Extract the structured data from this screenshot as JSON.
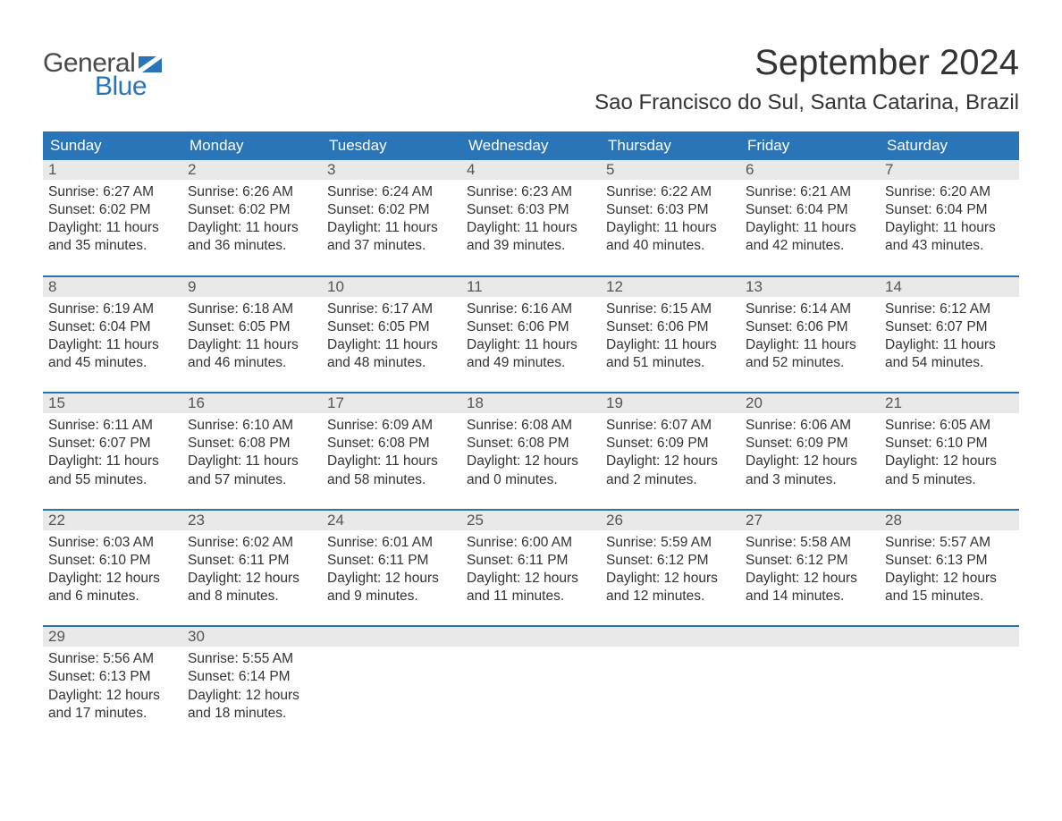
{
  "logo": {
    "line1": "General",
    "line2": "Blue",
    "flag_color": "#2a74b8",
    "text1_color": "#4a4a4a",
    "text2_color": "#2a74b8"
  },
  "title": "September 2024",
  "location": "Sao Francisco do Sul, Santa Catarina, Brazil",
  "colors": {
    "header_bg": "#2a74b8",
    "header_text": "#ffffff",
    "daynum_bg": "#e9e9e9",
    "daynum_text": "#555555",
    "body_text": "#333333",
    "week_divider": "#2a74b8",
    "page_bg": "#ffffff"
  },
  "typography": {
    "title_fontsize": 40,
    "location_fontsize": 24,
    "dayheader_fontsize": 17,
    "daynum_fontsize": 17,
    "body_fontsize": 15.5,
    "font_family": "Arial"
  },
  "layout": {
    "columns": 7,
    "rows": 5,
    "week_divider_width": 2
  },
  "day_headers": [
    "Sunday",
    "Monday",
    "Tuesday",
    "Wednesday",
    "Thursday",
    "Friday",
    "Saturday"
  ],
  "weeks": [
    [
      {
        "n": "1",
        "sunrise": "Sunrise: 6:27 AM",
        "sunset": "Sunset: 6:02 PM",
        "dl1": "Daylight: 11 hours",
        "dl2": "and 35 minutes."
      },
      {
        "n": "2",
        "sunrise": "Sunrise: 6:26 AM",
        "sunset": "Sunset: 6:02 PM",
        "dl1": "Daylight: 11 hours",
        "dl2": "and 36 minutes."
      },
      {
        "n": "3",
        "sunrise": "Sunrise: 6:24 AM",
        "sunset": "Sunset: 6:02 PM",
        "dl1": "Daylight: 11 hours",
        "dl2": "and 37 minutes."
      },
      {
        "n": "4",
        "sunrise": "Sunrise: 6:23 AM",
        "sunset": "Sunset: 6:03 PM",
        "dl1": "Daylight: 11 hours",
        "dl2": "and 39 minutes."
      },
      {
        "n": "5",
        "sunrise": "Sunrise: 6:22 AM",
        "sunset": "Sunset: 6:03 PM",
        "dl1": "Daylight: 11 hours",
        "dl2": "and 40 minutes."
      },
      {
        "n": "6",
        "sunrise": "Sunrise: 6:21 AM",
        "sunset": "Sunset: 6:04 PM",
        "dl1": "Daylight: 11 hours",
        "dl2": "and 42 minutes."
      },
      {
        "n": "7",
        "sunrise": "Sunrise: 6:20 AM",
        "sunset": "Sunset: 6:04 PM",
        "dl1": "Daylight: 11 hours",
        "dl2": "and 43 minutes."
      }
    ],
    [
      {
        "n": "8",
        "sunrise": "Sunrise: 6:19 AM",
        "sunset": "Sunset: 6:04 PM",
        "dl1": "Daylight: 11 hours",
        "dl2": "and 45 minutes."
      },
      {
        "n": "9",
        "sunrise": "Sunrise: 6:18 AM",
        "sunset": "Sunset: 6:05 PM",
        "dl1": "Daylight: 11 hours",
        "dl2": "and 46 minutes."
      },
      {
        "n": "10",
        "sunrise": "Sunrise: 6:17 AM",
        "sunset": "Sunset: 6:05 PM",
        "dl1": "Daylight: 11 hours",
        "dl2": "and 48 minutes."
      },
      {
        "n": "11",
        "sunrise": "Sunrise: 6:16 AM",
        "sunset": "Sunset: 6:06 PM",
        "dl1": "Daylight: 11 hours",
        "dl2": "and 49 minutes."
      },
      {
        "n": "12",
        "sunrise": "Sunrise: 6:15 AM",
        "sunset": "Sunset: 6:06 PM",
        "dl1": "Daylight: 11 hours",
        "dl2": "and 51 minutes."
      },
      {
        "n": "13",
        "sunrise": "Sunrise: 6:14 AM",
        "sunset": "Sunset: 6:06 PM",
        "dl1": "Daylight: 11 hours",
        "dl2": "and 52 minutes."
      },
      {
        "n": "14",
        "sunrise": "Sunrise: 6:12 AM",
        "sunset": "Sunset: 6:07 PM",
        "dl1": "Daylight: 11 hours",
        "dl2": "and 54 minutes."
      }
    ],
    [
      {
        "n": "15",
        "sunrise": "Sunrise: 6:11 AM",
        "sunset": "Sunset: 6:07 PM",
        "dl1": "Daylight: 11 hours",
        "dl2": "and 55 minutes."
      },
      {
        "n": "16",
        "sunrise": "Sunrise: 6:10 AM",
        "sunset": "Sunset: 6:08 PM",
        "dl1": "Daylight: 11 hours",
        "dl2": "and 57 minutes."
      },
      {
        "n": "17",
        "sunrise": "Sunrise: 6:09 AM",
        "sunset": "Sunset: 6:08 PM",
        "dl1": "Daylight: 11 hours",
        "dl2": "and 58 minutes."
      },
      {
        "n": "18",
        "sunrise": "Sunrise: 6:08 AM",
        "sunset": "Sunset: 6:08 PM",
        "dl1": "Daylight: 12 hours",
        "dl2": "and 0 minutes."
      },
      {
        "n": "19",
        "sunrise": "Sunrise: 6:07 AM",
        "sunset": "Sunset: 6:09 PM",
        "dl1": "Daylight: 12 hours",
        "dl2": "and 2 minutes."
      },
      {
        "n": "20",
        "sunrise": "Sunrise: 6:06 AM",
        "sunset": "Sunset: 6:09 PM",
        "dl1": "Daylight: 12 hours",
        "dl2": "and 3 minutes."
      },
      {
        "n": "21",
        "sunrise": "Sunrise: 6:05 AM",
        "sunset": "Sunset: 6:10 PM",
        "dl1": "Daylight: 12 hours",
        "dl2": "and 5 minutes."
      }
    ],
    [
      {
        "n": "22",
        "sunrise": "Sunrise: 6:03 AM",
        "sunset": "Sunset: 6:10 PM",
        "dl1": "Daylight: 12 hours",
        "dl2": "and 6 minutes."
      },
      {
        "n": "23",
        "sunrise": "Sunrise: 6:02 AM",
        "sunset": "Sunset: 6:11 PM",
        "dl1": "Daylight: 12 hours",
        "dl2": "and 8 minutes."
      },
      {
        "n": "24",
        "sunrise": "Sunrise: 6:01 AM",
        "sunset": "Sunset: 6:11 PM",
        "dl1": "Daylight: 12 hours",
        "dl2": "and 9 minutes."
      },
      {
        "n": "25",
        "sunrise": "Sunrise: 6:00 AM",
        "sunset": "Sunset: 6:11 PM",
        "dl1": "Daylight: 12 hours",
        "dl2": "and 11 minutes."
      },
      {
        "n": "26",
        "sunrise": "Sunrise: 5:59 AM",
        "sunset": "Sunset: 6:12 PM",
        "dl1": "Daylight: 12 hours",
        "dl2": "and 12 minutes."
      },
      {
        "n": "27",
        "sunrise": "Sunrise: 5:58 AM",
        "sunset": "Sunset: 6:12 PM",
        "dl1": "Daylight: 12 hours",
        "dl2": "and 14 minutes."
      },
      {
        "n": "28",
        "sunrise": "Sunrise: 5:57 AM",
        "sunset": "Sunset: 6:13 PM",
        "dl1": "Daylight: 12 hours",
        "dl2": "and 15 minutes."
      }
    ],
    [
      {
        "n": "29",
        "sunrise": "Sunrise: 5:56 AM",
        "sunset": "Sunset: 6:13 PM",
        "dl1": "Daylight: 12 hours",
        "dl2": "and 17 minutes."
      },
      {
        "n": "30",
        "sunrise": "Sunrise: 5:55 AM",
        "sunset": "Sunset: 6:14 PM",
        "dl1": "Daylight: 12 hours",
        "dl2": "and 18 minutes."
      },
      {
        "empty": true
      },
      {
        "empty": true
      },
      {
        "empty": true
      },
      {
        "empty": true
      },
      {
        "empty": true
      }
    ]
  ]
}
